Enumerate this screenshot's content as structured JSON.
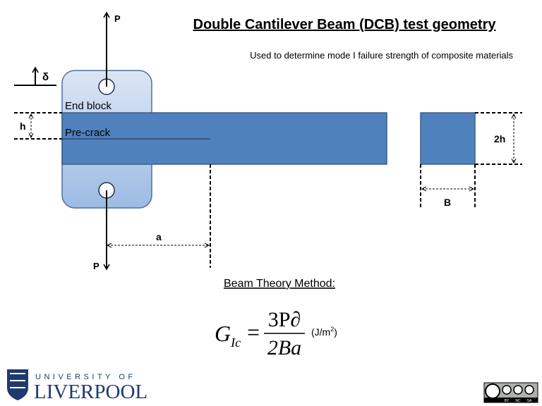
{
  "header": {
    "title": "Double Cantilever Beam (DCB) test geometry",
    "subtitle": "Used to determine mode I failure strength of composite materials"
  },
  "labels": {
    "load_top": "P",
    "load_bottom": "P",
    "delta": "δ",
    "end_block": "End block",
    "h": "h",
    "pre_crack": "Pre-crack",
    "two_h": "2h",
    "b": "B",
    "a": "a"
  },
  "method": {
    "title": "Beam Theory Method:",
    "formula": {
      "symbol": "G",
      "subscript": "Ic",
      "equals": "=",
      "numerator": "3P∂",
      "denominator": "2Ba",
      "units_prefix": "(J/m",
      "units_exponent": "2",
      "units_suffix": ")"
    }
  },
  "logo": {
    "line1": "UNIVERSITY OF",
    "line2": "LIVERPOOL"
  },
  "license": {
    "by": "BY",
    "nc": "NC",
    "sa": "SA"
  }
}
